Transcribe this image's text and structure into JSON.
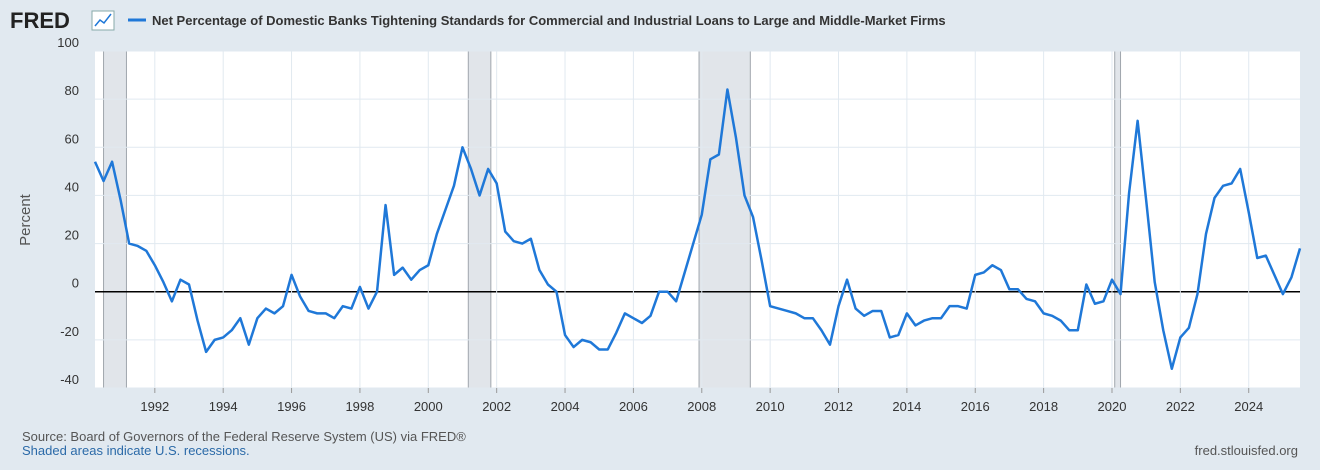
{
  "chart_data": {
    "type": "line",
    "logo": "FRED",
    "title": "Net Percentage of Domestic Banks Tightening Standards for Commercial and Industrial Loans to Large and Middle-Market Firms",
    "y_label": "Percent",
    "source": "Source: Board of Governors of the Federal Reserve System (US) via FRED®",
    "note": "Shaded areas indicate U.S. recessions.",
    "site": "fred.stlouisfed.org",
    "xlim": [
      1990.25,
      2025.5
    ],
    "xticks": [
      1992,
      1994,
      1996,
      1998,
      2000,
      2002,
      2004,
      2006,
      2008,
      2010,
      2012,
      2014,
      2016,
      2018,
      2020,
      2022,
      2024
    ],
    "ylim": [
      -40,
      100
    ],
    "yticks": [
      -40,
      -20,
      0,
      20,
      40,
      60,
      80,
      100
    ],
    "grid": true,
    "recessions": [
      [
        1990.5,
        1991.17
      ],
      [
        2001.17,
        2001.83
      ],
      [
        2007.92,
        2009.42
      ],
      [
        2020.08,
        2020.25
      ]
    ],
    "x": [
      1990.25,
      1990.5,
      1990.75,
      1991,
      1991.25,
      1991.5,
      1991.75,
      1992,
      1992.25,
      1992.5,
      1992.75,
      1993,
      1993.25,
      1993.5,
      1993.75,
      1994,
      1994.25,
      1994.5,
      1994.75,
      1995,
      1995.25,
      1995.5,
      1995.75,
      1996,
      1996.25,
      1996.5,
      1996.75,
      1997,
      1997.25,
      1997.5,
      1997.75,
      1998,
      1998.25,
      1998.5,
      1998.75,
      1999,
      1999.25,
      1999.5,
      1999.75,
      2000,
      2000.25,
      2000.5,
      2000.75,
      2001,
      2001.25,
      2001.5,
      2001.75,
      2002,
      2002.25,
      2002.5,
      2002.75,
      2003,
      2003.25,
      2003.5,
      2003.75,
      2004,
      2004.25,
      2004.5,
      2004.75,
      2005,
      2005.25,
      2005.5,
      2005.75,
      2006,
      2006.25,
      2006.5,
      2006.75,
      2007,
      2007.25,
      2007.5,
      2007.75,
      2008,
      2008.25,
      2008.5,
      2008.75,
      2009,
      2009.25,
      2009.5,
      2009.75,
      2010,
      2010.25,
      2010.5,
      2010.75,
      2011,
      2011.25,
      2011.5,
      2011.75,
      2012,
      2012.25,
      2012.5,
      2012.75,
      2013,
      2013.25,
      2013.5,
      2013.75,
      2014,
      2014.25,
      2014.5,
      2014.75,
      2015,
      2015.25,
      2015.5,
      2015.75,
      2016,
      2016.25,
      2016.5,
      2016.75,
      2017,
      2017.25,
      2017.5,
      2017.75,
      2018,
      2018.25,
      2018.5,
      2018.75,
      2019,
      2019.25,
      2019.5,
      2019.75,
      2020,
      2020.25,
      2020.5,
      2020.75,
      2021,
      2021.25,
      2021.5,
      2021.75,
      2022,
      2022.25,
      2022.5,
      2022.75,
      2023,
      2023.25,
      2023.5,
      2023.75,
      2024,
      2024.25,
      2024.5,
      2024.75,
      2025,
      2025.25,
      2025.5
    ],
    "series": [
      {
        "name": "Net Percentage of Domestic Banks Tightening Standards for Commercial and Industrial Loans to Large and Middle-Market Firms",
        "color": "#1f78d8",
        "values": [
          54,
          46,
          54,
          38,
          20,
          19,
          17,
          11,
          4,
          -4,
          5,
          3,
          -12,
          -25,
          -20,
          -19,
          -16,
          -11,
          -22,
          -11,
          -7,
          -9,
          -6,
          7,
          -2,
          -8,
          -9,
          -9,
          -11,
          -6,
          -7,
          2,
          -7,
          0,
          36,
          7,
          10,
          5,
          9,
          11,
          24,
          34,
          44,
          60,
          51,
          40,
          51,
          45,
          25,
          21,
          20,
          22,
          9,
          3,
          0,
          -18,
          -23,
          -20,
          -21,
          -24,
          -24,
          -17,
          -9,
          -11,
          -13,
          -10,
          0,
          0,
          -4,
          8,
          20,
          32,
          55,
          57,
          84,
          64,
          40,
          31,
          13,
          -6,
          -7,
          -8,
          -9,
          -11,
          -11,
          -16,
          -22,
          -6,
          5,
          -7,
          -10,
          -8,
          -8,
          -19,
          -18,
          -9,
          -14,
          -12,
          -11,
          -11,
          -6,
          -6,
          -7,
          7,
          8,
          11,
          9,
          1,
          1,
          -3,
          -4,
          -9,
          -10,
          -12,
          -16,
          -16,
          3,
          -5,
          -4,
          5,
          -1,
          41,
          71,
          38,
          4,
          -16,
          -32,
          -19,
          -15,
          -1,
          24,
          39,
          44,
          45,
          51,
          33,
          14,
          15,
          7,
          -1,
          6,
          18
        ]
      }
    ]
  }
}
